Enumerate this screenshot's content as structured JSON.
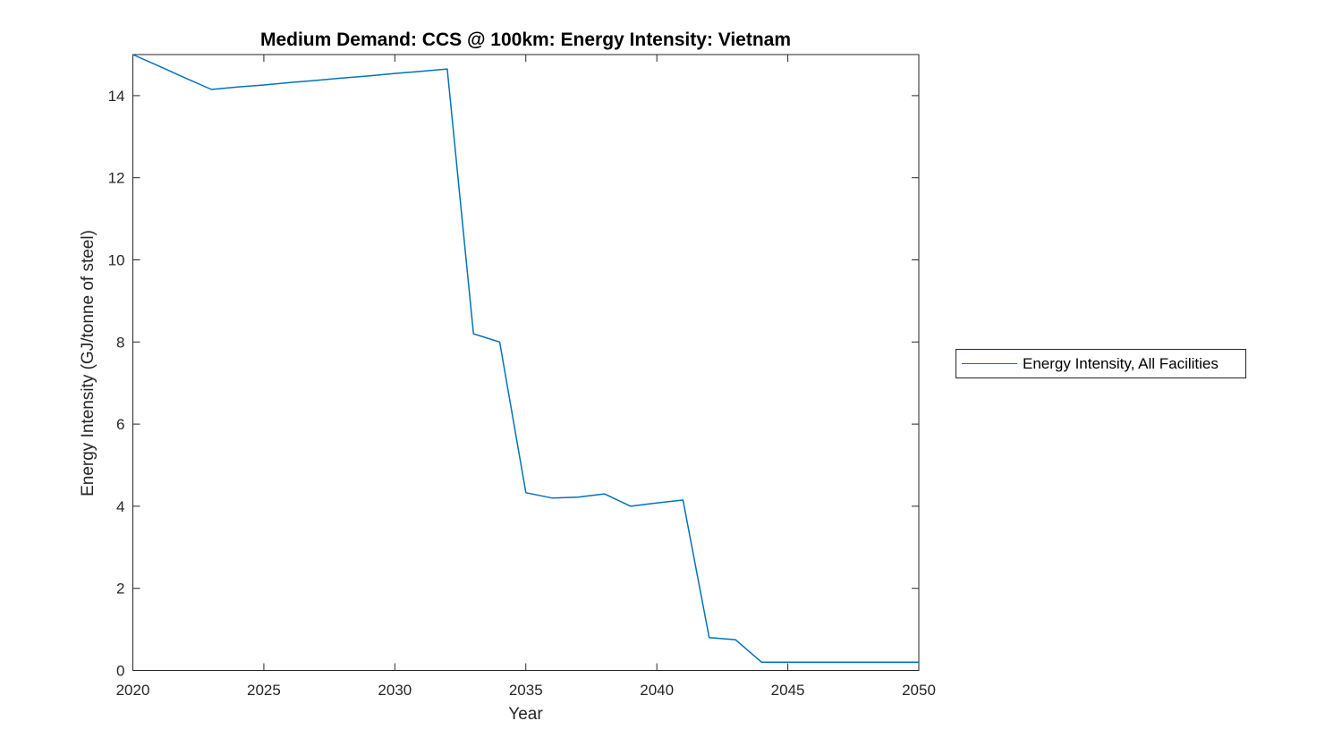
{
  "page": {
    "background": "#ffffff"
  },
  "colors": {
    "line": "#0072BD",
    "axis": "#262626",
    "text": "#000000"
  },
  "chart_data": {
    "type": "line",
    "title": "Medium Demand: CCS @ 100km: Energy Intensity: Vietnam",
    "xlabel": "Year",
    "ylabel": "Energy Intensity (GJ/tonne of steel)",
    "xlim": [
      2020,
      2050
    ],
    "ylim": [
      0,
      15
    ],
    "xticks": [
      2020,
      2025,
      2030,
      2035,
      2040,
      2045,
      2050
    ],
    "yticks": [
      0,
      2,
      4,
      6,
      8,
      10,
      12,
      14
    ],
    "grid": false,
    "box": true,
    "tick_direction": "in",
    "legend": {
      "position": "outside-right",
      "boxed": true,
      "entries": [
        "Energy Intensity, All Facilities"
      ]
    },
    "series": [
      {
        "name": "Energy Intensity, All Facilities",
        "color": "#0072BD",
        "x": [
          2020,
          2021,
          2022,
          2023,
          2024,
          2025,
          2026,
          2027,
          2028,
          2029,
          2030,
          2031,
          2032,
          2033,
          2034,
          2035,
          2036,
          2037,
          2038,
          2039,
          2040,
          2041,
          2042,
          2043,
          2044,
          2045,
          2046,
          2047,
          2048,
          2049,
          2050
        ],
        "y": [
          15.0,
          14.72,
          14.43,
          14.15,
          14.21,
          14.26,
          14.32,
          14.37,
          14.43,
          14.48,
          14.54,
          14.59,
          14.65,
          8.2,
          8.0,
          4.33,
          4.2,
          4.22,
          4.3,
          4.0,
          4.08,
          4.15,
          0.8,
          0.75,
          0.2,
          0.2,
          0.2,
          0.2,
          0.2,
          0.2,
          0.2
        ]
      }
    ]
  }
}
